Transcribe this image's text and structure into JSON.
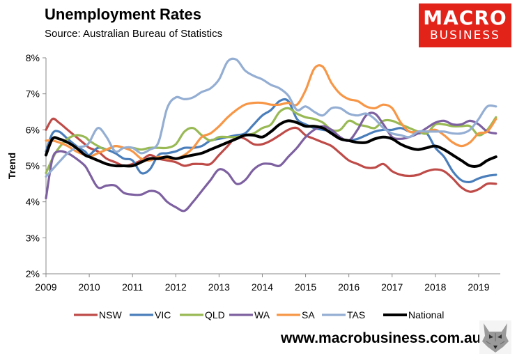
{
  "header": {
    "title": "Unemployment Rates",
    "subtitle": "Source: Australian Bureau of Statistics"
  },
  "logo": {
    "line1": "MACRO",
    "line2": "BUSINESS"
  },
  "footer": {
    "website": "www.macrobusiness.com.au"
  },
  "colors": {
    "NSW": "#be4b48",
    "VIC": "#4a7ebb",
    "QLD": "#98b954",
    "WA": "#7d60a0",
    "SA": "#f79646",
    "TAS": "#94aed3",
    "National": "#000000",
    "logo_bg": "#e2231a"
  },
  "chart_data": {
    "type": "line",
    "title": "Unemployment Rates",
    "xlabel": "",
    "ylabel": "Trend",
    "xlim": [
      2009,
      2019.5
    ],
    "ylim": [
      2,
      8
    ],
    "x_ticks": [
      "2009",
      "2010",
      "2011",
      "2012",
      "2013",
      "2014",
      "2015",
      "2016",
      "2017",
      "2018",
      "2019"
    ],
    "y_ticks": [
      "2%",
      "3%",
      "4%",
      "5%",
      "6%",
      "7%",
      "8%"
    ],
    "grid": false,
    "legend_position": "bottom",
    "series": [
      {
        "name": "NSW",
        "color": "#be4b48",
        "x": [
          2009,
          2009.15,
          2009.3,
          2009.5,
          2009.7,
          2009.9,
          2010,
          2010.2,
          2010.4,
          2010.6,
          2010.8,
          2011,
          2011.2,
          2011.4,
          2011.6,
          2011.8,
          2012,
          2012.2,
          2012.4,
          2012.6,
          2012.8,
          2013,
          2013.2,
          2013.4,
          2013.6,
          2013.8,
          2014,
          2014.2,
          2014.4,
          2014.6,
          2014.8,
          2015,
          2015.2,
          2015.4,
          2015.6,
          2015.8,
          2016,
          2016.2,
          2016.4,
          2016.6,
          2016.8,
          2017,
          2017.2,
          2017.4,
          2017.6,
          2017.8,
          2018,
          2018.2,
          2018.4,
          2018.6,
          2018.8,
          2019,
          2019.2,
          2019.4
        ],
        "values": [
          6.0,
          6.3,
          6.2,
          6.0,
          5.8,
          5.6,
          5.5,
          5.4,
          5.2,
          5.1,
          5.0,
          5.05,
          5.15,
          5.3,
          5.2,
          5.15,
          5.1,
          5.0,
          5.05,
          5.05,
          5.05,
          5.3,
          5.55,
          5.8,
          5.75,
          5.6,
          5.6,
          5.7,
          5.85,
          6.0,
          6.05,
          5.85,
          5.75,
          5.65,
          5.55,
          5.35,
          5.15,
          5.05,
          4.95,
          4.95,
          5.05,
          4.85,
          4.75,
          4.72,
          4.75,
          4.85,
          4.9,
          4.85,
          4.65,
          4.4,
          4.28,
          4.35,
          4.5,
          4.5
        ]
      },
      {
        "name": "VIC",
        "color": "#4a7ebb",
        "x": [
          2009,
          2009.15,
          2009.3,
          2009.5,
          2009.7,
          2009.9,
          2010,
          2010.2,
          2010.4,
          2010.6,
          2010.8,
          2011,
          2011.2,
          2011.4,
          2011.6,
          2011.8,
          2012,
          2012.2,
          2012.4,
          2012.6,
          2012.8,
          2013,
          2013.2,
          2013.4,
          2013.6,
          2013.8,
          2014,
          2014.2,
          2014.4,
          2014.6,
          2014.8,
          2015,
          2015.2,
          2015.4,
          2015.6,
          2015.8,
          2016,
          2016.2,
          2016.4,
          2016.6,
          2016.8,
          2017,
          2017.2,
          2017.4,
          2017.6,
          2017.8,
          2018,
          2018.2,
          2018.4,
          2018.6,
          2018.8,
          2019,
          2019.2,
          2019.4
        ],
        "values": [
          5.4,
          5.9,
          5.95,
          5.75,
          5.55,
          5.4,
          5.3,
          5.5,
          5.45,
          5.35,
          5.2,
          5.15,
          4.8,
          4.9,
          5.3,
          5.35,
          5.4,
          5.5,
          5.5,
          5.55,
          5.7,
          5.75,
          5.8,
          5.85,
          5.9,
          6.15,
          6.4,
          6.55,
          6.8,
          6.8,
          6.3,
          6.15,
          6.05,
          6.0,
          5.95,
          5.75,
          5.7,
          5.75,
          5.85,
          5.95,
          6.0,
          6.0,
          6.05,
          5.95,
          5.9,
          5.9,
          5.5,
          5.25,
          4.85,
          4.6,
          4.55,
          4.65,
          4.72,
          4.75
        ]
      },
      {
        "name": "QLD",
        "color": "#98b954",
        "x": [
          2009,
          2009.15,
          2009.3,
          2009.5,
          2009.7,
          2009.9,
          2010,
          2010.2,
          2010.4,
          2010.6,
          2010.8,
          2011,
          2011.2,
          2011.4,
          2011.6,
          2011.8,
          2012,
          2012.2,
          2012.4,
          2012.6,
          2012.8,
          2013,
          2013.2,
          2013.4,
          2013.6,
          2013.8,
          2014,
          2014.2,
          2014.4,
          2014.6,
          2014.8,
          2015,
          2015.2,
          2015.4,
          2015.6,
          2015.8,
          2016,
          2016.2,
          2016.4,
          2016.6,
          2016.8,
          2017,
          2017.2,
          2017.4,
          2017.6,
          2017.8,
          2018,
          2018.2,
          2018.4,
          2018.6,
          2018.8,
          2019,
          2019.2,
          2019.4
        ],
        "values": [
          4.8,
          5.2,
          5.5,
          5.75,
          5.85,
          5.8,
          5.7,
          5.55,
          5.45,
          5.55,
          5.5,
          5.5,
          5.45,
          5.5,
          5.5,
          5.5,
          5.6,
          5.95,
          6.05,
          5.85,
          5.7,
          5.8,
          5.8,
          5.8,
          5.85,
          5.9,
          6.05,
          6.15,
          6.5,
          6.6,
          6.45,
          6.35,
          6.3,
          6.2,
          6.0,
          6.0,
          6.25,
          6.15,
          6.1,
          6.05,
          6.25,
          6.25,
          6.15,
          6.05,
          5.95,
          5.9,
          6.15,
          6.15,
          6.1,
          6.1,
          6.1,
          5.85,
          6.0,
          6.35
        ]
      },
      {
        "name": "WA",
        "color": "#7d60a0",
        "x": [
          2009,
          2009.15,
          2009.3,
          2009.5,
          2009.7,
          2009.9,
          2010,
          2010.2,
          2010.4,
          2010.6,
          2010.8,
          2011,
          2011.2,
          2011.4,
          2011.6,
          2011.8,
          2012,
          2012.2,
          2012.4,
          2012.6,
          2012.8,
          2013,
          2013.2,
          2013.4,
          2013.6,
          2013.8,
          2014,
          2014.2,
          2014.4,
          2014.6,
          2014.8,
          2015,
          2015.2,
          2015.4,
          2015.6,
          2015.8,
          2016,
          2016.2,
          2016.4,
          2016.6,
          2016.8,
          2017,
          2017.2,
          2017.4,
          2017.6,
          2017.8,
          2018,
          2018.2,
          2018.4,
          2018.6,
          2018.8,
          2019,
          2019.2,
          2019.4
        ],
        "values": [
          4.1,
          5.2,
          5.4,
          5.35,
          5.2,
          5.0,
          4.8,
          4.4,
          4.45,
          4.45,
          4.25,
          4.2,
          4.2,
          4.3,
          4.25,
          4.0,
          3.85,
          3.75,
          4.0,
          4.3,
          4.6,
          4.9,
          4.8,
          4.5,
          4.6,
          4.9,
          5.05,
          5.05,
          5.0,
          5.25,
          5.5,
          5.8,
          6.0,
          6.1,
          6.0,
          5.8,
          5.7,
          6.0,
          6.4,
          6.45,
          6.15,
          5.8,
          5.75,
          5.8,
          5.9,
          6.05,
          6.2,
          6.25,
          6.15,
          6.15,
          6.25,
          6.15,
          5.95,
          5.9
        ]
      },
      {
        "name": "SA",
        "color": "#f79646",
        "x": [
          2009,
          2009.15,
          2009.3,
          2009.5,
          2009.7,
          2009.9,
          2010,
          2010.2,
          2010.4,
          2010.6,
          2010.8,
          2011,
          2011.2,
          2011.4,
          2011.6,
          2011.8,
          2012,
          2012.2,
          2012.4,
          2012.6,
          2012.8,
          2013,
          2013.2,
          2013.4,
          2013.6,
          2013.8,
          2014,
          2014.2,
          2014.4,
          2014.6,
          2014.8,
          2015,
          2015.2,
          2015.4,
          2015.6,
          2015.8,
          2016,
          2016.2,
          2016.4,
          2016.6,
          2016.8,
          2017,
          2017.2,
          2017.4,
          2017.6,
          2017.8,
          2018,
          2018.2,
          2018.4,
          2018.6,
          2018.8,
          2019,
          2019.2,
          2019.4
        ],
        "values": [
          5.7,
          5.7,
          5.65,
          5.55,
          5.4,
          5.3,
          5.25,
          5.35,
          5.45,
          5.55,
          5.5,
          5.4,
          5.2,
          5.15,
          5.25,
          5.2,
          5.2,
          5.3,
          5.5,
          5.8,
          5.9,
          6.1,
          6.35,
          6.55,
          6.7,
          6.75,
          6.75,
          6.7,
          6.7,
          6.75,
          6.7,
          7.1,
          7.7,
          7.75,
          7.3,
          7.0,
          6.85,
          6.8,
          6.65,
          6.6,
          6.7,
          6.6,
          6.2,
          5.95,
          5.95,
          5.95,
          6.0,
          5.85,
          5.65,
          5.55,
          5.65,
          5.9,
          5.95,
          6.3
        ]
      },
      {
        "name": "TAS",
        "color": "#94aed3",
        "x": [
          2009,
          2009.15,
          2009.3,
          2009.5,
          2009.7,
          2009.9,
          2010,
          2010.2,
          2010.4,
          2010.6,
          2010.8,
          2011,
          2011.2,
          2011.4,
          2011.6,
          2011.8,
          2012,
          2012.2,
          2012.4,
          2012.6,
          2012.8,
          2013,
          2013.2,
          2013.4,
          2013.6,
          2013.8,
          2014,
          2014.2,
          2014.4,
          2014.6,
          2014.8,
          2015,
          2015.2,
          2015.4,
          2015.6,
          2015.8,
          2016,
          2016.2,
          2016.4,
          2016.6,
          2016.8,
          2017,
          2017.2,
          2017.4,
          2017.6,
          2017.8,
          2018,
          2018.2,
          2018.4,
          2018.6,
          2018.8,
          2019,
          2019.2,
          2019.4
        ],
        "values": [
          4.7,
          4.9,
          5.1,
          5.35,
          5.5,
          5.55,
          5.65,
          6.05,
          5.8,
          5.4,
          5.5,
          5.5,
          5.35,
          5.45,
          5.65,
          6.6,
          6.9,
          6.85,
          6.9,
          7.05,
          7.15,
          7.4,
          7.9,
          7.95,
          7.65,
          7.5,
          7.4,
          7.25,
          7.15,
          6.95,
          6.55,
          6.65,
          6.5,
          6.4,
          6.6,
          6.6,
          6.45,
          6.4,
          6.45,
          6.3,
          6.05,
          5.9,
          5.85,
          5.8,
          5.95,
          5.95,
          5.95,
          5.95,
          5.9,
          5.9,
          6.0,
          6.3,
          6.65,
          6.65
        ]
      },
      {
        "name": "National",
        "color": "#000000",
        "x": [
          2009,
          2009.15,
          2009.3,
          2009.5,
          2009.7,
          2009.9,
          2010,
          2010.2,
          2010.4,
          2010.6,
          2010.8,
          2011,
          2011.2,
          2011.4,
          2011.6,
          2011.8,
          2012,
          2012.2,
          2012.4,
          2012.6,
          2012.8,
          2013,
          2013.2,
          2013.4,
          2013.6,
          2013.8,
          2014,
          2014.2,
          2014.4,
          2014.6,
          2014.8,
          2015,
          2015.2,
          2015.4,
          2015.6,
          2015.8,
          2016,
          2016.2,
          2016.4,
          2016.6,
          2016.8,
          2017,
          2017.2,
          2017.4,
          2017.6,
          2017.8,
          2018,
          2018.2,
          2018.4,
          2018.6,
          2018.8,
          2019,
          2019.2,
          2019.4
        ],
        "values": [
          5.3,
          5.75,
          5.75,
          5.65,
          5.5,
          5.3,
          5.25,
          5.15,
          5.05,
          5.0,
          5.0,
          5.0,
          5.1,
          5.2,
          5.2,
          5.25,
          5.2,
          5.25,
          5.3,
          5.35,
          5.45,
          5.55,
          5.65,
          5.75,
          5.85,
          5.85,
          5.8,
          5.95,
          6.15,
          6.25,
          6.2,
          6.1,
          6.1,
          6.05,
          5.9,
          5.75,
          5.7,
          5.65,
          5.65,
          5.75,
          5.8,
          5.75,
          5.6,
          5.5,
          5.45,
          5.5,
          5.55,
          5.45,
          5.3,
          5.15,
          5.0,
          5.0,
          5.15,
          5.25
        ]
      }
    ]
  }
}
